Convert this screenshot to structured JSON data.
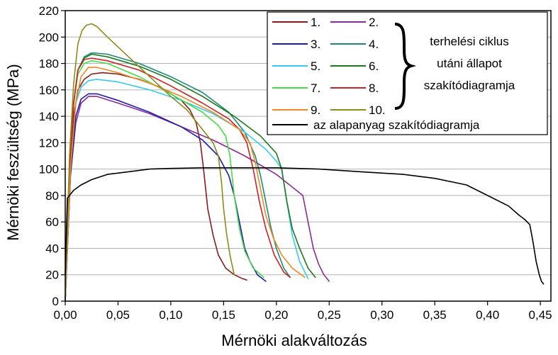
{
  "chart_data": {
    "type": "line",
    "xlabel": "Mérnöki alakváltozás",
    "ylabel": "Mérnöki feszültség  (MPa)",
    "xlim": [
      0.0,
      0.46
    ],
    "ylim": [
      0,
      220
    ],
    "x_ticks": [
      "0,00",
      "0,05",
      "0,10",
      "0,15",
      "0,20",
      "0,25",
      "0,30",
      "0,35",
      "0,40",
      "0,45"
    ],
    "x_tick_values": [
      0,
      0.05,
      0.1,
      0.15,
      0.2,
      0.25,
      0.3,
      0.35,
      0.4,
      0.45
    ],
    "y_ticks": [
      "0",
      "20",
      "40",
      "60",
      "80",
      "100",
      "120",
      "140",
      "160",
      "180",
      "200",
      "220"
    ],
    "y_tick_values": [
      0,
      20,
      40,
      60,
      80,
      100,
      120,
      140,
      160,
      180,
      200,
      220
    ],
    "grid": "horizontal",
    "legend_position": "top-right",
    "legend_brace_text": [
      "terhelési ciklus",
      "utáni állapot",
      "szakítódiagramja"
    ],
    "series": [
      {
        "name": "1.",
        "color": "#8b1a1a",
        "x": [
          0,
          0.004,
          0.008,
          0.012,
          0.018,
          0.025,
          0.035,
          0.05,
          0.07,
          0.09,
          0.11,
          0.118,
          0.124,
          0.128,
          0.131,
          0.135,
          0.14,
          0.145,
          0.152,
          0.16,
          0.168,
          0.172
        ],
        "y": [
          0,
          95,
          140,
          160,
          168,
          172,
          173,
          172,
          168,
          162,
          152,
          145,
          135,
          120,
          100,
          70,
          50,
          35,
          25,
          20,
          17,
          16
        ]
      },
      {
        "name": "2.",
        "color": "#8b2a96",
        "x": [
          0,
          0.005,
          0.01,
          0.015,
          0.022,
          0.03,
          0.05,
          0.08,
          0.11,
          0.14,
          0.17,
          0.2,
          0.225,
          0.23,
          0.235,
          0.24,
          0.245,
          0.25
        ],
        "y": [
          0,
          95,
          135,
          150,
          155,
          155,
          150,
          142,
          132,
          122,
          110,
          96,
          80,
          60,
          40,
          28,
          20,
          15
        ]
      },
      {
        "name": "3.",
        "color": "#1c1cb0",
        "x": [
          0,
          0.005,
          0.01,
          0.015,
          0.022,
          0.03,
          0.05,
          0.08,
          0.11,
          0.13,
          0.145,
          0.155,
          0.16,
          0.165,
          0.17,
          0.175,
          0.182,
          0.19
        ],
        "y": [
          0,
          95,
          140,
          153,
          157,
          157,
          152,
          143,
          132,
          122,
          110,
          95,
          80,
          60,
          40,
          30,
          20,
          15
        ]
      },
      {
        "name": "4.",
        "color": "#1a8a7a",
        "x": [
          0,
          0.004,
          0.008,
          0.012,
          0.018,
          0.025,
          0.04,
          0.07,
          0.1,
          0.13,
          0.155,
          0.17,
          0.18,
          0.185,
          0.19,
          0.195,
          0.2,
          0.207,
          0.213
        ],
        "y": [
          0,
          100,
          150,
          175,
          185,
          188,
          187,
          180,
          170,
          158,
          143,
          128,
          110,
          95,
          75,
          55,
          40,
          25,
          18
        ]
      },
      {
        "name": "5.",
        "color": "#33ccee",
        "x": [
          0,
          0.005,
          0.01,
          0.015,
          0.022,
          0.03,
          0.05,
          0.08,
          0.11,
          0.14,
          0.17,
          0.19,
          0.2,
          0.205,
          0.21,
          0.215,
          0.222,
          0.23
        ],
        "y": [
          0,
          100,
          150,
          162,
          167,
          168,
          166,
          160,
          152,
          142,
          128,
          115,
          106,
          100,
          75,
          50,
          30,
          17
        ]
      },
      {
        "name": "6.",
        "color": "#1c7a1c",
        "x": [
          0,
          0.004,
          0.008,
          0.012,
          0.018,
          0.025,
          0.04,
          0.07,
          0.1,
          0.13,
          0.16,
          0.185,
          0.2,
          0.205,
          0.21,
          0.215,
          0.222,
          0.23,
          0.237
        ],
        "y": [
          0,
          100,
          150,
          175,
          184,
          187,
          185,
          178,
          168,
          155,
          140,
          125,
          112,
          100,
          75,
          55,
          40,
          25,
          18
        ]
      },
      {
        "name": "7.",
        "color": "#44dd44",
        "x": [
          0,
          0.004,
          0.008,
          0.012,
          0.018,
          0.025,
          0.04,
          0.07,
          0.1,
          0.13,
          0.145,
          0.152,
          0.156,
          0.16,
          0.165,
          0.17,
          0.178,
          0.188
        ],
        "y": [
          0,
          100,
          150,
          172,
          180,
          182,
          180,
          170,
          157,
          143,
          133,
          125,
          110,
          80,
          55,
          38,
          25,
          18
        ]
      },
      {
        "name": "8.",
        "color": "#cc2222",
        "x": [
          0,
          0.004,
          0.008,
          0.012,
          0.018,
          0.025,
          0.04,
          0.07,
          0.1,
          0.13,
          0.155,
          0.165,
          0.172,
          0.178,
          0.184,
          0.19,
          0.198,
          0.207,
          0.213
        ],
        "y": [
          0,
          100,
          150,
          175,
          183,
          184,
          182,
          175,
          163,
          150,
          138,
          130,
          120,
          100,
          75,
          55,
          35,
          22,
          18
        ]
      },
      {
        "name": "9.",
        "color": "#ee8822",
        "x": [
          0,
          0.005,
          0.01,
          0.015,
          0.022,
          0.03,
          0.05,
          0.08,
          0.11,
          0.14,
          0.165,
          0.175,
          0.18,
          0.185,
          0.19,
          0.197,
          0.205,
          0.215,
          0.227
        ],
        "y": [
          0,
          100,
          150,
          170,
          177,
          177,
          173,
          165,
          155,
          143,
          130,
          120,
          105,
          85,
          65,
          48,
          35,
          25,
          18
        ]
      },
      {
        "name": "10.",
        "color": "#8c8c1a",
        "x": [
          0,
          0.004,
          0.008,
          0.012,
          0.016,
          0.02,
          0.025,
          0.03,
          0.04,
          0.06,
          0.08,
          0.1,
          0.115,
          0.13,
          0.14,
          0.145,
          0.148,
          0.15,
          0.153,
          0.156,
          0.16
        ],
        "y": [
          0,
          110,
          165,
          195,
          205,
          209,
          210,
          208,
          200,
          185,
          170,
          155,
          145,
          130,
          120,
          110,
          90,
          70,
          50,
          35,
          20
        ]
      },
      {
        "name": "az alapanyag szakítódiagramja",
        "color": "#000000",
        "x": [
          0,
          0.002,
          0.004,
          0.008,
          0.015,
          0.025,
          0.04,
          0.06,
          0.08,
          0.1,
          0.13,
          0.16,
          0.2,
          0.24,
          0.28,
          0.32,
          0.35,
          0.38,
          0.4,
          0.42,
          0.43,
          0.435,
          0.44,
          0.443,
          0.446,
          0.449,
          0.451,
          0.453
        ],
        "y": [
          20,
          78,
          80,
          84,
          88,
          92,
          96,
          98,
          100,
          100.5,
          101,
          101,
          101,
          100,
          98,
          96,
          93,
          88,
          80,
          72,
          65,
          62,
          58,
          45,
          30,
          20,
          15,
          13
        ]
      }
    ]
  }
}
